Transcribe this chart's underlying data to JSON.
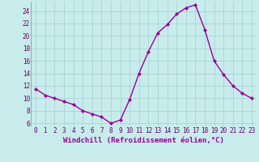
{
  "x": [
    0,
    1,
    2,
    3,
    4,
    5,
    6,
    7,
    8,
    9,
    10,
    11,
    12,
    13,
    14,
    15,
    16,
    17,
    18,
    19,
    20,
    21,
    22,
    23
  ],
  "y": [
    11.5,
    10.5,
    10.0,
    9.5,
    9.0,
    8.0,
    7.5,
    7.0,
    6.0,
    6.5,
    9.8,
    14.0,
    17.5,
    20.5,
    21.8,
    23.5,
    24.5,
    25.0,
    21.0,
    16.0,
    13.8,
    12.0,
    10.8,
    10.0
  ],
  "line_color": "#990099",
  "marker": "D",
  "markersize": 2.0,
  "linewidth": 1.0,
  "bg_color": "#c8ecec",
  "grid_color": "#aad4d4",
  "xlabel": "Windchill (Refroidissement éolien,°C)",
  "xlim": [
    -0.5,
    23.5
  ],
  "ylim": [
    5.5,
    25.5
  ],
  "yticks": [
    6,
    8,
    10,
    12,
    14,
    16,
    18,
    20,
    22,
    24
  ],
  "xticks": [
    0,
    1,
    2,
    3,
    4,
    5,
    6,
    7,
    8,
    9,
    10,
    11,
    12,
    13,
    14,
    15,
    16,
    17,
    18,
    19,
    20,
    21,
    22,
    23
  ],
  "tick_label_fontsize": 5.5,
  "xlabel_fontsize": 6.5
}
